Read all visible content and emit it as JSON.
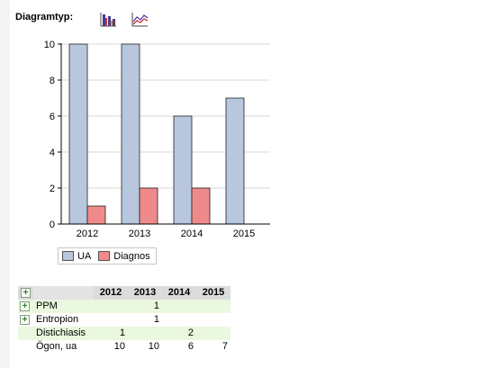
{
  "toolbar": {
    "label": "Diagramtyp:",
    "buttons": [
      {
        "name": "bar-chart-icon"
      },
      {
        "name": "line-chart-icon"
      }
    ]
  },
  "chart_data": {
    "type": "bar",
    "categories": [
      "2012",
      "2013",
      "2014",
      "2015"
    ],
    "series": [
      {
        "name": "UA",
        "values": [
          10,
          10,
          6,
          7
        ],
        "color": "#b8c6de"
      },
      {
        "name": "Diagnos",
        "values": [
          1,
          2,
          2,
          0
        ],
        "color": "#ef8a8a"
      }
    ],
    "ylim": [
      0,
      10
    ],
    "yticks": [
      0,
      2,
      4,
      6,
      8,
      10
    ],
    "grid": true,
    "legend": "bottom"
  },
  "table": {
    "corner": "",
    "columns": [
      "2012",
      "2013",
      "2014",
      "2015"
    ],
    "rows": [
      {
        "label": "PPM",
        "expandable": true,
        "highlight": true,
        "cells": [
          "",
          "1",
          "",
          ""
        ]
      },
      {
        "label": "Entropion",
        "expandable": true,
        "highlight": false,
        "cells": [
          "",
          "1",
          "",
          ""
        ]
      },
      {
        "label": "Distichiasis",
        "expandable": false,
        "highlight": true,
        "cells": [
          "1",
          "",
          "2",
          ""
        ]
      },
      {
        "label": "Ögon, ua",
        "expandable": false,
        "highlight": false,
        "cells": [
          "10",
          "10",
          "6",
          "7"
        ]
      }
    ],
    "expander_symbol": "+"
  }
}
